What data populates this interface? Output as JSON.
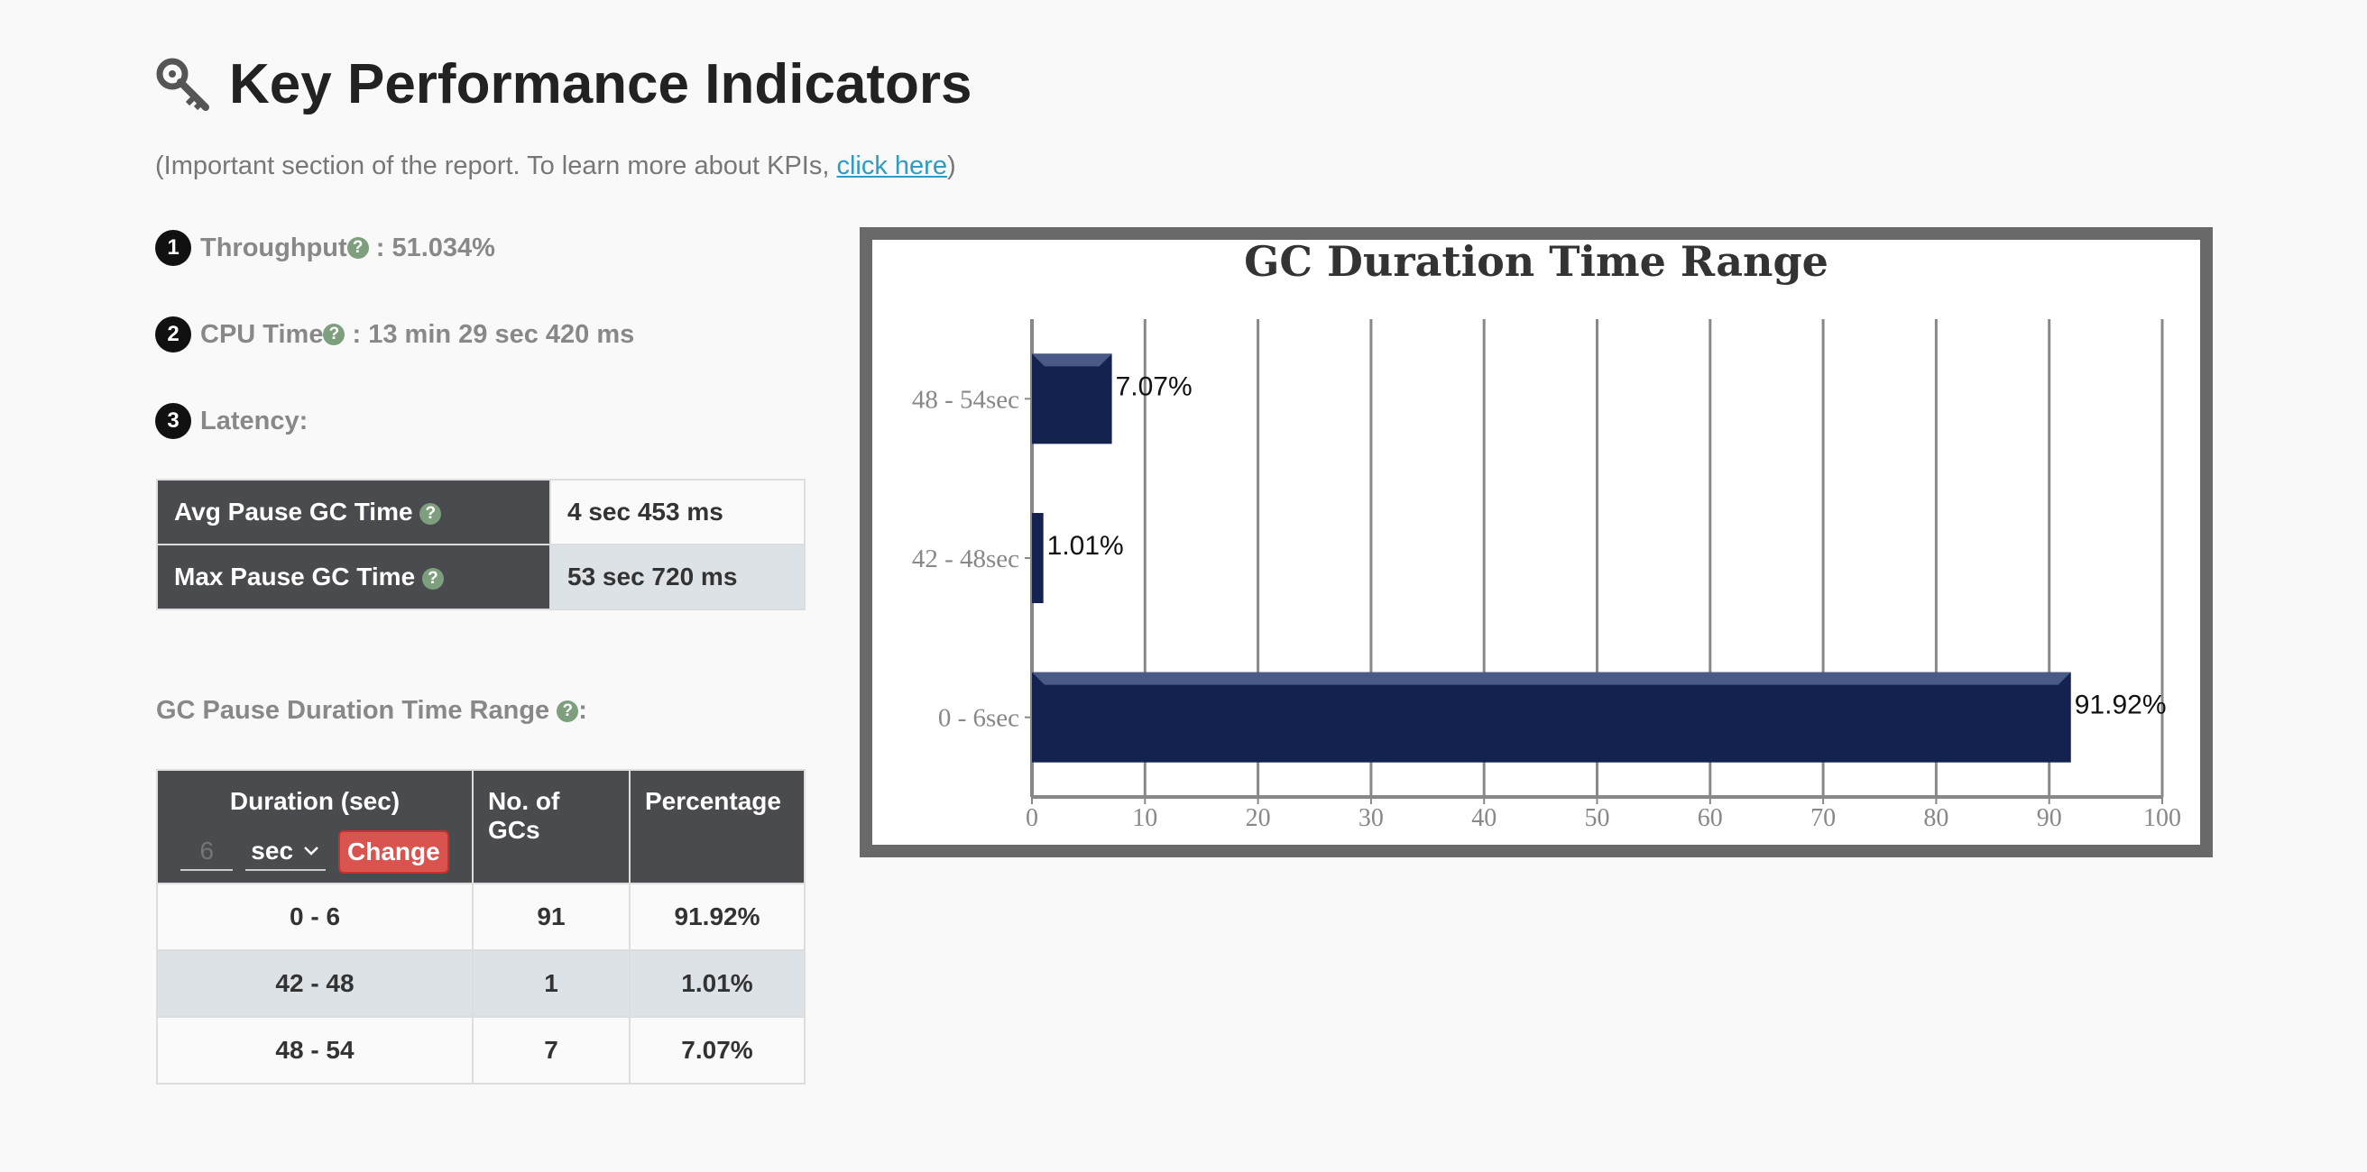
{
  "header": {
    "title": "Key Performance Indicators",
    "subtitle_prefix": "(Important section of the report. To learn more about KPIs, ",
    "subtitle_link": "click here",
    "subtitle_suffix": ")"
  },
  "kpis": [
    {
      "number": "1",
      "label": "Throughput",
      "value": " : 51.034%"
    },
    {
      "number": "2",
      "label": "CPU Time",
      "value": " : 13 min 29 sec 420 ms"
    },
    {
      "number": "3",
      "label": "Latency:",
      "value": ""
    }
  ],
  "help_icon_glyph": "?",
  "latency_table": [
    {
      "label": "Avg Pause GC Time",
      "value": "4 sec 453 ms"
    },
    {
      "label": "Max Pause GC Time",
      "value": "53 sec 720 ms"
    }
  ],
  "gc_range": {
    "label": "GC Pause Duration Time Range",
    "label_suffix": ":",
    "headers": {
      "duration": "Duration (sec)",
      "count": "No. of GCs",
      "percentage": "Percentage"
    },
    "input_placeholder": "6",
    "unit": "sec",
    "change_button": "Change",
    "rows": [
      {
        "duration": "0 - 6",
        "count": "91",
        "percentage": "91.92%"
      },
      {
        "duration": "42 - 48",
        "count": "1",
        "percentage": "1.01%"
      },
      {
        "duration": "48 - 54",
        "count": "7",
        "percentage": "7.07%"
      }
    ]
  },
  "colors": {
    "bar": "#142250",
    "frame": "#696969",
    "header_bg": "#4a4b4f",
    "change_btn": "#d9534f"
  },
  "chart_data": {
    "type": "bar",
    "orientation": "horizontal",
    "title": "GC Duration Time Range",
    "categories": [
      "48 - 54sec",
      "42 - 48sec",
      "0 - 6sec"
    ],
    "values": [
      7.07,
      1.01,
      91.92
    ],
    "data_labels": [
      "7.07%",
      "1.01%",
      "91.92%"
    ],
    "xlim": [
      0,
      100
    ],
    "x_ticks": [
      "0",
      "10",
      "20",
      "30",
      "40",
      "50",
      "60",
      "70",
      "80",
      "90",
      "100"
    ],
    "grid": true
  }
}
